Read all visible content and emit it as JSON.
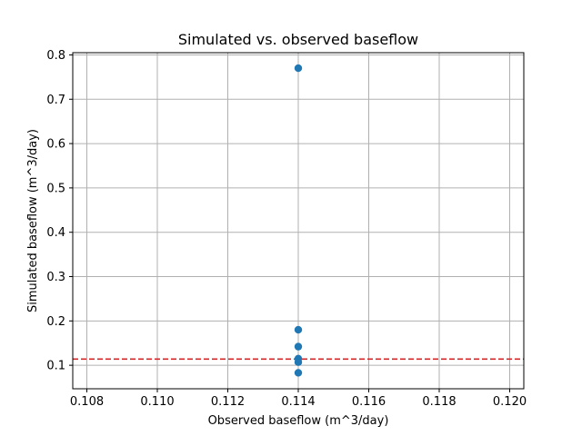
{
  "chart_data": {
    "type": "scatter",
    "title": "Simulated vs. observed baseflow",
    "xlabel": "Observed baseflow (m^3/day)",
    "ylabel": "Simulated baseflow (m^3/day)",
    "xlim": [
      0.1076,
      0.1204
    ],
    "ylim": [
      0.047,
      0.805
    ],
    "xticks": [
      "0.108",
      "0.110",
      "0.112",
      "0.114",
      "0.116",
      "0.118",
      "0.120"
    ],
    "yticks": [
      "0.1",
      "0.2",
      "0.3",
      "0.4",
      "0.5",
      "0.6",
      "0.7",
      "0.8"
    ],
    "grid": true,
    "series": [
      {
        "x": [
          0.114,
          0.114,
          0.114,
          0.114,
          0.114,
          0.114
        ],
        "y": [
          0.77,
          0.18,
          0.142,
          0.115,
          0.107,
          0.083
        ],
        "color": "#1f77b4"
      }
    ],
    "reference_line": {
      "y": 0.114,
      "color": "#d62728",
      "style": "dashed"
    }
  }
}
